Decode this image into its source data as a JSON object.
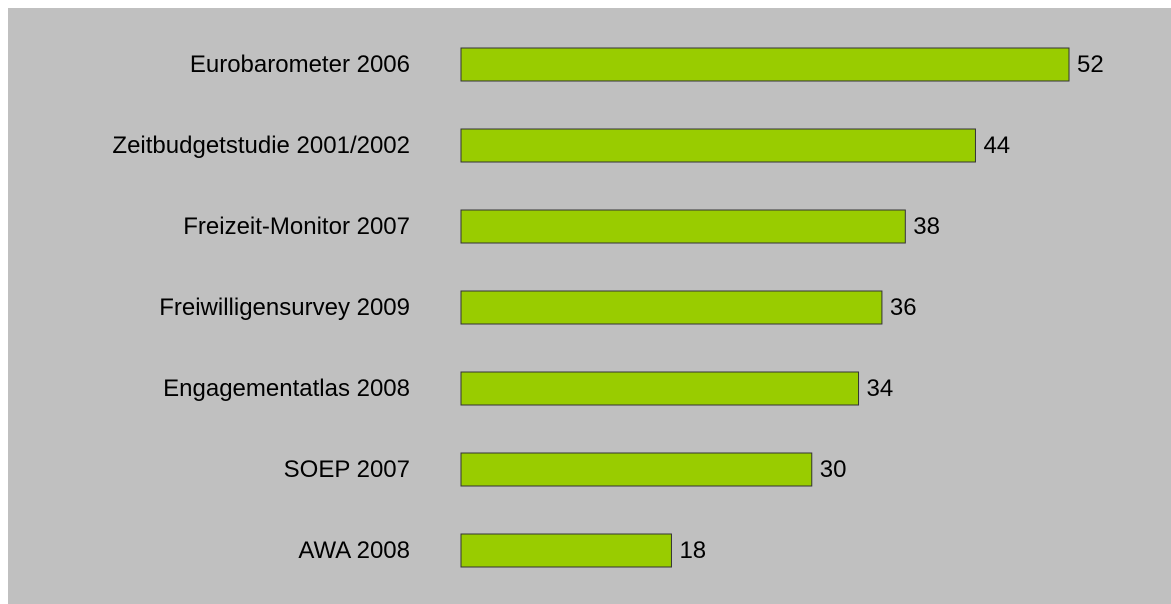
{
  "chart_data": {
    "type": "bar",
    "orientation": "horizontal",
    "categories": [
      "Eurobarometer 2006",
      "Zeitbudgetstudie 2001/2002",
      "Freizeit-Monitor 2007",
      "Freiwilligensurvey 2009",
      "Engagementatlas 2008",
      "SOEP 2007",
      "AWA 2008"
    ],
    "values": [
      52,
      44,
      38,
      36,
      34,
      30,
      18
    ],
    "color": "#99cc00"
  }
}
